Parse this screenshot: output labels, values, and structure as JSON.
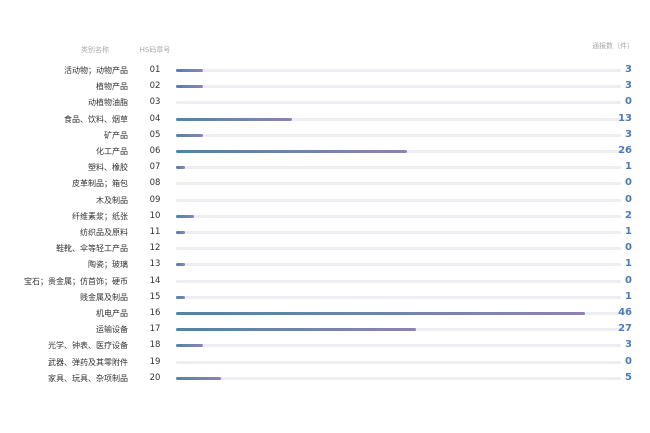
{
  "headers": {
    "category": "类别名称",
    "hs_code": "HS码章号",
    "count": "通报数（件）"
  },
  "colors": {
    "track": "#eceef1",
    "bar_gradient_start": "#4a86a8",
    "bar_gradient_end": "#9080b8",
    "count_text": "#4a7bbd",
    "label_text": "#333333",
    "header_text": "#a9a9a9"
  },
  "chart_data": {
    "type": "bar",
    "orientation": "horizontal",
    "title": "",
    "xlabel": "",
    "ylabel": "",
    "xlim": [
      0,
      50
    ],
    "grid": false,
    "legend": "none",
    "categories": [
      "活动物；动物产品",
      "植物产品",
      "动植物油脂",
      "食品、饮料、烟草",
      "矿产品",
      "化工产品",
      "塑料、橡胶",
      "皮革制品；箱包",
      "木及制品",
      "纤维素浆；纸张",
      "纺织品及原料",
      "鞋靴、伞等轻工产品",
      "陶瓷；玻璃",
      "宝石；贵金属；仿首饰；硬币",
      "贱金属及制品",
      "机电产品",
      "运输设备",
      "光学、钟表、医疗设备",
      "武器、弹药及其零附件",
      "家具、玩具、杂项制品"
    ],
    "hs_codes": [
      "01",
      "02",
      "03",
      "04",
      "05",
      "06",
      "07",
      "08",
      "09",
      "10",
      "11",
      "12",
      "13",
      "14",
      "15",
      "16",
      "17",
      "18",
      "19",
      "20"
    ],
    "values": [
      3,
      3,
      0,
      13,
      3,
      26,
      1,
      0,
      0,
      2,
      1,
      0,
      1,
      0,
      1,
      46,
      27,
      3,
      0,
      5
    ]
  }
}
